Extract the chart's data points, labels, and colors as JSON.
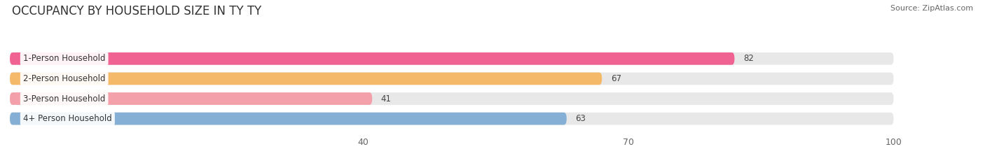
{
  "title": "OCCUPANCY BY HOUSEHOLD SIZE IN TY TY",
  "source": "Source: ZipAtlas.com",
  "categories": [
    "1-Person Household",
    "2-Person Household",
    "3-Person Household",
    "4+ Person Household"
  ],
  "values": [
    82,
    67,
    41,
    63
  ],
  "bar_colors": [
    "#f06292",
    "#f5b96a",
    "#f4a0aa",
    "#85afd4"
  ],
  "xlim": [
    0,
    107
  ],
  "data_max": 100,
  "xticks": [
    40,
    70,
    100
  ],
  "background_color": "#ffffff",
  "bar_background_color": "#e8e8e8",
  "title_fontsize": 12,
  "source_fontsize": 8,
  "label_fontsize": 8.5,
  "value_fontsize": 8.5,
  "tick_fontsize": 9,
  "bar_height": 0.62,
  "bar_gap": 1.0
}
